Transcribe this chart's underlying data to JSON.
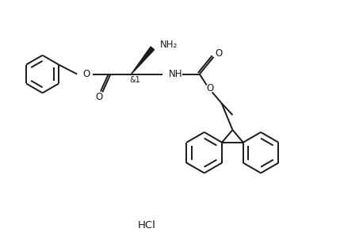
{
  "background_color": "#ffffff",
  "line_color": "#1a1a1a",
  "line_width": 1.4,
  "font_size": 8.5,
  "figsize": [
    4.58,
    3.08
  ],
  "dpi": 100,
  "hcl_text": "HCl",
  "nh2_text": "NH₂",
  "nh_text": "NH",
  "o_text": "O",
  "amp1_text": "&1"
}
